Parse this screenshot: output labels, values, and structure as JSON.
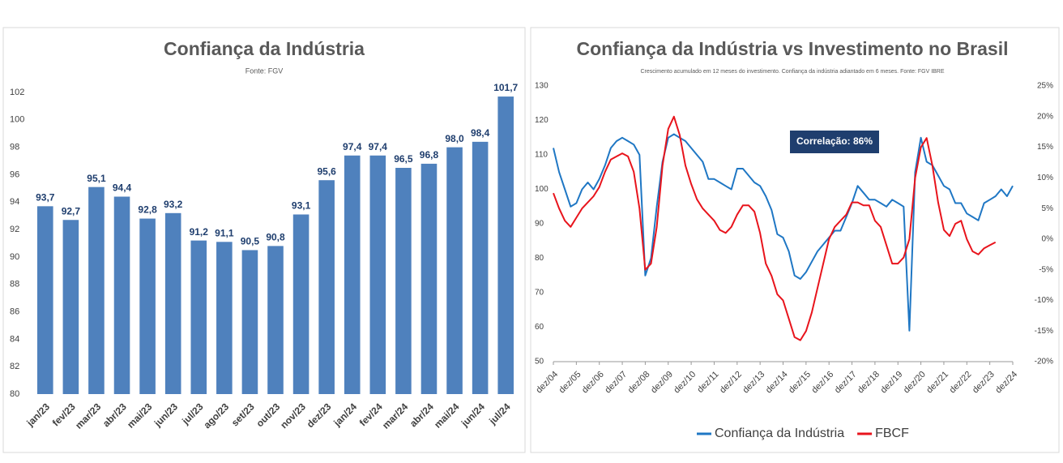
{
  "chart_data": [
    {
      "type": "bar",
      "title": "Confiança da Indústria",
      "subtitle": "Fonte: FGV",
      "categories": [
        "jan/23",
        "fev/23",
        "mar/23",
        "abr/23",
        "mai/23",
        "jun/23",
        "jul/23",
        "ago/23",
        "set/23",
        "out/23",
        "nov/23",
        "dez/23",
        "jan/24",
        "fev/24",
        "mar/24",
        "abr/24",
        "mai/24",
        "jun/24",
        "jul/24"
      ],
      "values": [
        93.7,
        92.7,
        95.1,
        94.4,
        92.8,
        93.2,
        91.2,
        91.1,
        90.5,
        90.8,
        93.1,
        95.6,
        97.4,
        97.4,
        96.5,
        96.8,
        98.0,
        98.4,
        101.7
      ],
      "value_labels": [
        "93,7",
        "92,7",
        "95,1",
        "94,4",
        "92,8",
        "93,2",
        "91,2",
        "91,1",
        "90,5",
        "90,8",
        "93,1",
        "95,6",
        "97,4",
        "97,4",
        "96,5",
        "96,8",
        "98,0",
        "98,4",
        "101,7"
      ],
      "color": "#4f81bd",
      "ylim": [
        80,
        102
      ],
      "yticks": [
        80,
        82,
        84,
        86,
        88,
        90,
        92,
        94,
        96,
        98,
        100,
        102
      ]
    },
    {
      "type": "line",
      "title": "Confiança da Indústria vs Investimento no Brasil",
      "subtitle": "Crescimento acumulado em 12 meses do investimento. Confiança da indústria adiantado em 6 meses. Fonte: FGV IBRE",
      "annotation": "Correlação: 86%",
      "categories": [
        "dez/04",
        null,
        null,
        null,
        "dez/05",
        null,
        null,
        null,
        "dez/06",
        null,
        null,
        null,
        "dez/07",
        null,
        null,
        null,
        "dez/08",
        null,
        null,
        null,
        "dez/09",
        null,
        null,
        null,
        "dez/10",
        null,
        null,
        null,
        "dez/11",
        null,
        null,
        null,
        "dez/12",
        null,
        null,
        null,
        "dez/13",
        null,
        null,
        null,
        "dez/14",
        null,
        null,
        null,
        "dez/15",
        null,
        null,
        null,
        "dez/16",
        null,
        null,
        null,
        "dez/17",
        null,
        null,
        null,
        "dez/18",
        null,
        null,
        null,
        "dez/19",
        null,
        null,
        null,
        "dez/20",
        null,
        null,
        null,
        "dez/21",
        null,
        null,
        null,
        "dez/22",
        null,
        null,
        null,
        "dez/23",
        null,
        null,
        null,
        "dez/24"
      ],
      "series": [
        {
          "name": "Confiança da Indústria",
          "color": "#1f77c4",
          "values": [
            112,
            105,
            100,
            95,
            96,
            100,
            102,
            100,
            103,
            107,
            112,
            114,
            115,
            114,
            113,
            110,
            75,
            80,
            95,
            108,
            115,
            116,
            115,
            114,
            112,
            110,
            108,
            103,
            103,
            102,
            101,
            100,
            106,
            106,
            104,
            102,
            101,
            98,
            94,
            87,
            86,
            82,
            75,
            74,
            76,
            79,
            82,
            84,
            86,
            88,
            88,
            92,
            96,
            101,
            99,
            97,
            97,
            96,
            95,
            97,
            96,
            95,
            59,
            105,
            115,
            108,
            107,
            104,
            101,
            100,
            96,
            96,
            93,
            92,
            91,
            96,
            97,
            98,
            100,
            98,
            101
          ]
        },
        {
          "name": "FBCF",
          "color": "#e8141c",
          "axis": "y2",
          "values": [
            7.5,
            5,
            3,
            2,
            3.5,
            5,
            6,
            7,
            8.5,
            11,
            13,
            13.5,
            14,
            13.5,
            11,
            5,
            -5,
            -4,
            2,
            12,
            18,
            20,
            17,
            12,
            9,
            6.5,
            5,
            4,
            3,
            1.5,
            1,
            2,
            4,
            5.5,
            5.5,
            4.5,
            1,
            -4,
            -6,
            -9,
            -10,
            -13,
            -16,
            -16.5,
            -15,
            -12,
            -8,
            -4,
            0,
            2,
            3,
            4,
            6,
            6,
            5.5,
            5.5,
            3,
            2,
            -1,
            -4,
            -4,
            -3,
            0,
            10,
            15,
            16.5,
            12,
            6,
            1.5,
            0.5,
            2.5,
            3,
            0,
            -2,
            -2.5,
            -1.5,
            -1,
            -0.5,
            null,
            null,
            null
          ]
        }
      ],
      "ylim": [
        50,
        130
      ],
      "yticks": [
        50,
        60,
        70,
        80,
        90,
        100,
        110,
        120,
        130
      ],
      "y2lim": [
        -20,
        25
      ],
      "y2ticks": [
        {
          "value": -20,
          "label": "-20%"
        },
        {
          "value": -15,
          "label": "-15%"
        },
        {
          "value": -10,
          "label": "-10%"
        },
        {
          "value": -5,
          "label": "-5%"
        },
        {
          "value": 0,
          "label": "0%"
        },
        {
          "value": 5,
          "label": "5%"
        },
        {
          "value": 10,
          "label": "10%"
        },
        {
          "value": 15,
          "label": "15%"
        },
        {
          "value": 20,
          "label": "20%"
        },
        {
          "value": 25,
          "label": "25%"
        }
      ],
      "legend": "bottom"
    }
  ]
}
